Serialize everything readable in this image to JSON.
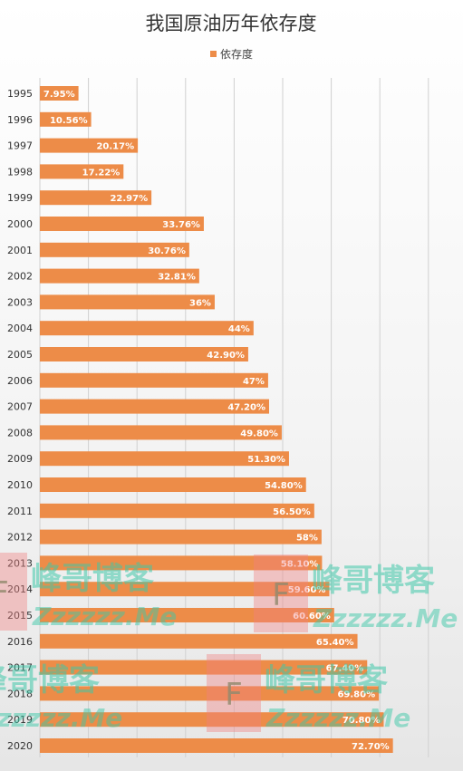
{
  "chart_data": {
    "type": "bar",
    "orientation": "horizontal",
    "title": "我国原油历年依存度",
    "legend": {
      "position": "top-center",
      "entries": [
        "依存度"
      ]
    },
    "categories": [
      "1995",
      "1996",
      "1997",
      "1998",
      "1999",
      "2000",
      "2001",
      "2002",
      "2003",
      "2004",
      "2005",
      "2006",
      "2007",
      "2008",
      "2009",
      "2010",
      "2011",
      "2012",
      "2013",
      "2014",
      "2015",
      "2016",
      "2017",
      "2018",
      "2019",
      "2020"
    ],
    "series": [
      {
        "name": "依存度",
        "color": "#ed8c48",
        "values": [
          7.95,
          10.56,
          20.17,
          17.22,
          22.97,
          33.76,
          30.76,
          32.81,
          36,
          44,
          42.9,
          47,
          47.2,
          49.8,
          51.3,
          54.8,
          56.5,
          58,
          58.1,
          59.6,
          60.6,
          65.4,
          67.4,
          69.8,
          70.8,
          72.7
        ],
        "labels": [
          "7.95%",
          "10.56%",
          "20.17%",
          "17.22%",
          "22.97%",
          "33.76%",
          "30.76%",
          "32.81%",
          "36%",
          "44%",
          "42.90%",
          "47%",
          "47.20%",
          "49.80%",
          "51.30%",
          "54.80%",
          "56.50%",
          "58%",
          "58.10%",
          "59.60%",
          "60.60%",
          "65.40%",
          "67.40%",
          "69.80%",
          "70.80%",
          "72.70%"
        ]
      }
    ],
    "xlim": [
      0,
      80
    ],
    "grid": true
  },
  "watermark": {
    "main": "峰哥博客",
    "sub": "Zzzzzz.Me",
    "logo_letter": "F"
  }
}
